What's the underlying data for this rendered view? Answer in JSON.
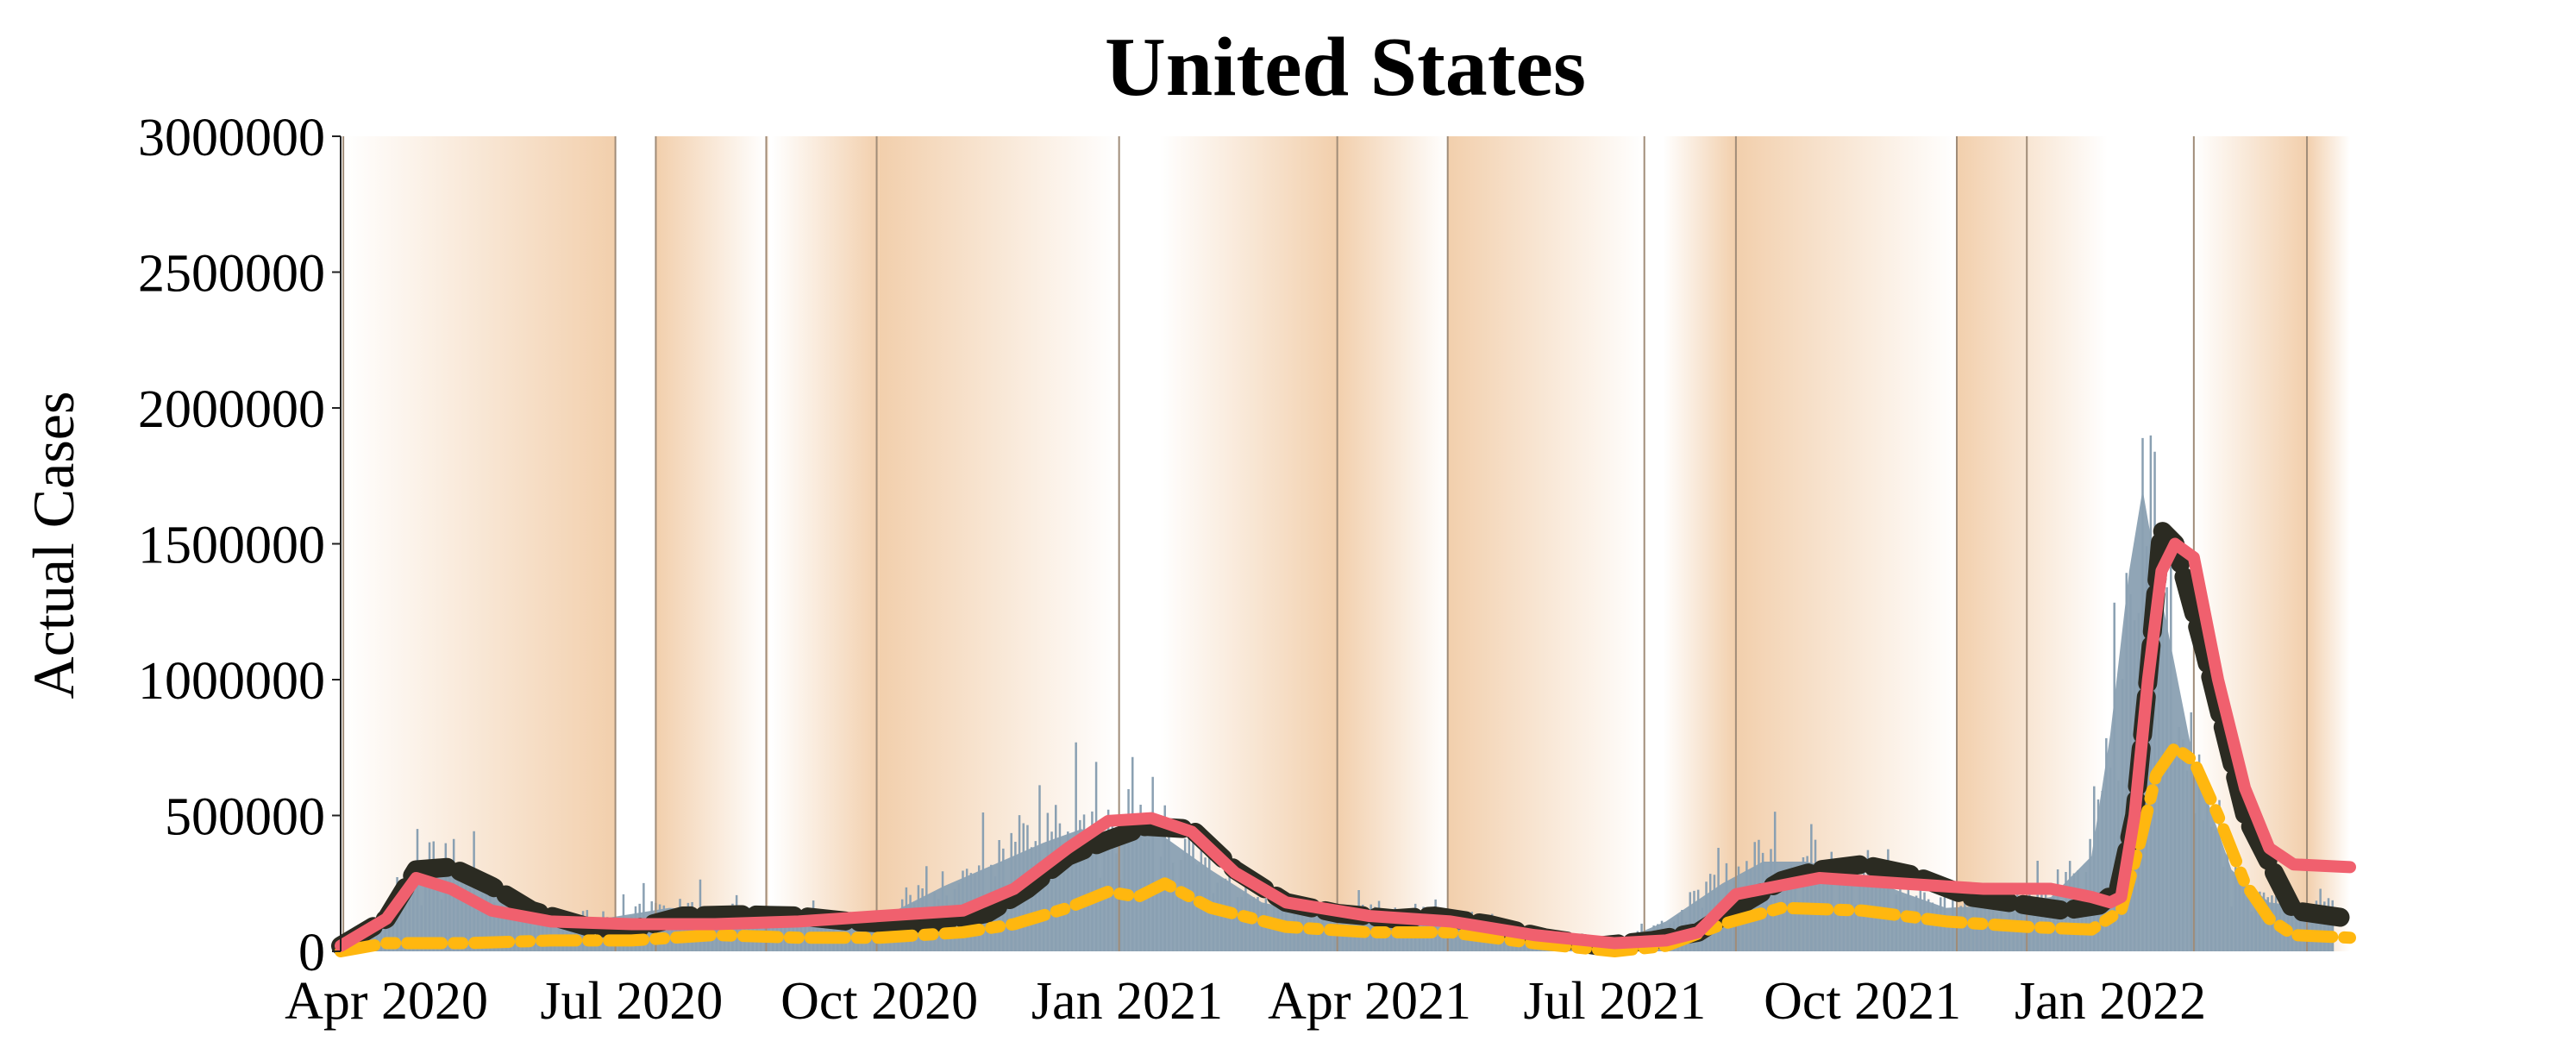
{
  "chart_data": {
    "type": "area",
    "title": "United States",
    "xlabel": "",
    "ylabel": "Actual Cases",
    "ylim": [
      0,
      3000000
    ],
    "xlim": [
      "2020-03-15",
      "2022-03-31"
    ],
    "y_ticks": [
      {
        "value": 0,
        "label": "0"
      },
      {
        "value": 500000,
        "label": "500000"
      },
      {
        "value": 1000000,
        "label": "1000000"
      },
      {
        "value": 1500000,
        "label": "1500000"
      },
      {
        "value": 2000000,
        "label": "2000000"
      },
      {
        "value": 2500000,
        "label": "2500000"
      },
      {
        "value": 3000000,
        "label": "3000000"
      }
    ],
    "x_ticks": [
      {
        "value": "2020-04-01",
        "label": "Apr 2020"
      },
      {
        "value": "2020-07-01",
        "label": "Jul 2020"
      },
      {
        "value": "2020-10-01",
        "label": "Oct 2020"
      },
      {
        "value": "2021-01-01",
        "label": "Jan 2021"
      },
      {
        "value": "2021-04-01",
        "label": "Apr 2021"
      },
      {
        "value": "2021-07-01",
        "label": "Jul 2021"
      },
      {
        "value": "2021-10-01",
        "label": "Oct 2021"
      },
      {
        "value": "2022-01-01",
        "label": "Jan 2022"
      }
    ],
    "grid": false,
    "colors": {
      "daily_bars": "#8aa0b2",
      "smoothed_actual": "#2b2b22",
      "model_fit": "#f0606e",
      "model_lower": "#ffb70f",
      "background_band": "#f2cfac",
      "boundary_line": "#a08c78"
    },
    "boundary_dates": [
      "2020-03-16",
      "2020-06-25",
      "2020-07-10",
      "2020-08-20",
      "2020-09-30",
      "2020-12-29",
      "2021-03-20",
      "2021-04-30",
      "2021-07-12",
      "2021-08-15",
      "2021-11-05",
      "2021-12-01",
      "2022-02-01",
      "2022-03-15"
    ],
    "background_bands": [
      {
        "start": "2020-03-16",
        "end": "2020-06-25",
        "peak": "2020-06-25"
      },
      {
        "start": "2020-07-10",
        "end": "2020-08-20",
        "peak": "2020-07-10"
      },
      {
        "start": "2020-08-20",
        "end": "2020-08-21",
        "peak": "2020-08-20"
      },
      {
        "start": "2020-08-22",
        "end": "2020-10-01",
        "peak": "2020-10-01"
      },
      {
        "start": "2020-10-01",
        "end": "2020-12-29",
        "peak": "2020-10-01"
      },
      {
        "start": "2021-01-13",
        "end": "2021-03-20",
        "peak": "2021-03-20"
      },
      {
        "start": "2021-03-20",
        "end": "2021-04-30",
        "peak": "2021-03-20"
      },
      {
        "start": "2021-04-30",
        "end": "2021-07-12",
        "peak": "2021-04-30"
      },
      {
        "start": "2021-07-19",
        "end": "2021-08-15",
        "peak": "2021-08-15"
      },
      {
        "start": "2021-08-15",
        "end": "2021-11-05",
        "peak": "2021-08-15"
      },
      {
        "start": "2021-11-05",
        "end": "2021-12-31",
        "peak": "2021-11-05"
      },
      {
        "start": "2022-02-01",
        "end": "2022-03-15",
        "peak": "2022-03-15"
      },
      {
        "start": "2022-03-15",
        "end": "2022-03-31",
        "peak": "2022-03-15"
      }
    ],
    "daily_cases": {
      "x": [
        "2020-03-15",
        "2020-04-01",
        "2020-04-12",
        "2020-04-25",
        "2020-05-10",
        "2020-06-01",
        "2020-06-20",
        "2020-07-15",
        "2020-08-01",
        "2020-08-25",
        "2020-09-15",
        "2020-10-05",
        "2020-10-25",
        "2020-11-15",
        "2020-12-01",
        "2020-12-15",
        "2020-12-25",
        "2021-01-05",
        "2021-01-15",
        "2021-02-01",
        "2021-02-20",
        "2021-03-15",
        "2021-04-15",
        "2021-05-15",
        "2021-06-15",
        "2021-07-01",
        "2021-07-20",
        "2021-08-10",
        "2021-08-25",
        "2021-09-10",
        "2021-09-25",
        "2021-10-15",
        "2021-11-01",
        "2021-11-20",
        "2021-12-10",
        "2021-12-25",
        "2022-01-01",
        "2022-01-08",
        "2022-01-13",
        "2022-01-20",
        "2022-02-01",
        "2022-02-15",
        "2022-03-01",
        "2022-03-25"
      ],
      "values": [
        20000,
        120000,
        320000,
        310000,
        210000,
        110000,
        120000,
        160000,
        150000,
        120000,
        110000,
        140000,
        240000,
        330000,
        400000,
        450000,
        420000,
        480000,
        420000,
        300000,
        180000,
        130000,
        140000,
        90000,
        30000,
        30000,
        110000,
        250000,
        330000,
        330000,
        300000,
        220000,
        160000,
        170000,
        200000,
        350000,
        800000,
        1400000,
        1700000,
        1300000,
        700000,
        300000,
        180000,
        150000
      ]
    },
    "series": [
      {
        "role": "smoothed_actual",
        "style": "dashed",
        "x": [
          "2020-03-15",
          "2020-04-01",
          "2020-04-12",
          "2020-04-25",
          "2020-05-10",
          "2020-05-25",
          "2020-06-15",
          "2020-07-01",
          "2020-07-20",
          "2020-08-10",
          "2020-09-01",
          "2020-09-20",
          "2020-10-10",
          "2020-10-25",
          "2020-11-10",
          "2020-11-25",
          "2020-12-10",
          "2020-12-25",
          "2021-01-08",
          "2021-01-25",
          "2021-02-10",
          "2021-03-01",
          "2021-03-20",
          "2021-04-10",
          "2021-04-25",
          "2021-05-15",
          "2021-06-05",
          "2021-06-25",
          "2021-07-15",
          "2021-08-01",
          "2021-08-15",
          "2021-09-01",
          "2021-09-15",
          "2021-10-01",
          "2021-10-20",
          "2021-11-10",
          "2021-12-01",
          "2021-12-15",
          "2021-12-28",
          "2022-01-04",
          "2022-01-10",
          "2022-01-15",
          "2022-01-20",
          "2022-01-25",
          "2022-02-05",
          "2022-02-20",
          "2022-03-10",
          "2022-03-31"
        ],
        "values": [
          20000,
          120000,
          300000,
          310000,
          240000,
          150000,
          90000,
          80000,
          130000,
          135000,
          130000,
          110000,
          100000,
          110000,
          140000,
          230000,
          350000,
          410000,
          460000,
          450000,
          300000,
          180000,
          140000,
          120000,
          130000,
          100000,
          50000,
          20000,
          40000,
          70000,
          160000,
          260000,
          300000,
          320000,
          280000,
          200000,
          170000,
          150000,
          170000,
          230000,
          500000,
          1000000,
          1550000,
          1500000,
          1100000,
          500000,
          150000,
          120000
        ]
      },
      {
        "role": "model_fit",
        "style": "solid",
        "x": [
          "2020-03-15",
          "2020-04-01",
          "2020-04-12",
          "2020-04-25",
          "2020-05-10",
          "2020-06-01",
          "2020-07-01",
          "2020-08-01",
          "2020-09-01",
          "2020-10-01",
          "2020-11-01",
          "2020-11-20",
          "2020-12-10",
          "2020-12-25",
          "2021-01-10",
          "2021-01-25",
          "2021-02-10",
          "2021-03-01",
          "2021-04-01",
          "2021-05-01",
          "2021-06-01",
          "2021-07-01",
          "2021-07-20",
          "2021-08-01",
          "2021-08-15",
          "2021-09-15",
          "2021-10-15",
          "2021-11-15",
          "2021-12-10",
          "2021-12-25",
          "2022-01-01",
          "2022-01-05",
          "2022-01-10",
          "2022-01-15",
          "2022-01-20",
          "2022-01-25",
          "2022-02-01",
          "2022-02-10",
          "2022-02-20",
          "2022-03-01",
          "2022-03-10",
          "2022-03-31"
        ],
        "values": [
          20000,
          120000,
          270000,
          230000,
          150000,
          110000,
          100000,
          100000,
          110000,
          130000,
          150000,
          230000,
          380000,
          480000,
          490000,
          440000,
          290000,
          180000,
          130000,
          110000,
          60000,
          30000,
          40000,
          70000,
          210000,
          270000,
          250000,
          230000,
          230000,
          200000,
          180000,
          200000,
          500000,
          1000000,
          1400000,
          1500000,
          1450000,
          1000000,
          600000,
          380000,
          320000,
          310000
        ]
      },
      {
        "role": "model_lower",
        "style": "dashdot",
        "x": [
          "2020-03-15",
          "2020-04-01",
          "2020-05-01",
          "2020-06-01",
          "2020-07-01",
          "2020-08-01",
          "2020-09-01",
          "2020-10-01",
          "2020-11-01",
          "2020-11-20",
          "2020-12-10",
          "2020-12-25",
          "2021-01-05",
          "2021-01-15",
          "2021-02-01",
          "2021-03-01",
          "2021-04-01",
          "2021-05-01",
          "2021-06-01",
          "2021-07-01",
          "2021-07-20",
          "2021-08-10",
          "2021-09-01",
          "2021-10-01",
          "2021-11-01",
          "2021-12-01",
          "2021-12-25",
          "2022-01-05",
          "2022-01-12",
          "2022-01-18",
          "2022-01-25",
          "2022-02-01",
          "2022-02-10",
          "2022-02-20",
          "2022-03-01",
          "2022-03-10",
          "2022-03-31"
        ],
        "values": [
          0,
          30000,
          30000,
          40000,
          40000,
          60000,
          50000,
          50000,
          70000,
          100000,
          160000,
          220000,
          200000,
          250000,
          160000,
          90000,
          70000,
          70000,
          30000,
          0,
          20000,
          100000,
          160000,
          150000,
          110000,
          90000,
          80000,
          150000,
          400000,
          650000,
          750000,
          700000,
          500000,
          250000,
          120000,
          60000,
          50000
        ]
      }
    ]
  }
}
